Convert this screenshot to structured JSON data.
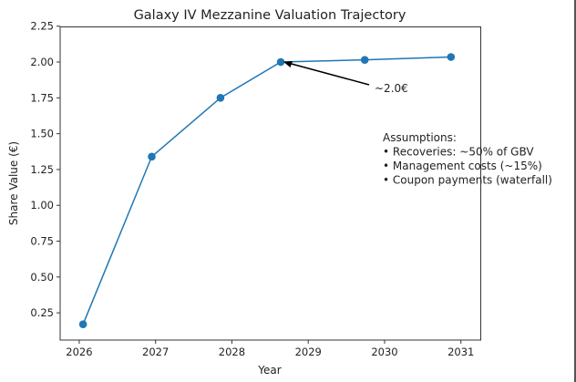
{
  "chart_data": {
    "type": "line",
    "title": "Galaxy IV Mezzanine Valuation Trajectory",
    "xlabel": "Year",
    "ylabel": "Share Value (€)",
    "x": [
      2026.05,
      2026.95,
      2027.85,
      2028.64,
      2029.74,
      2030.87
    ],
    "series": [
      {
        "values": [
          0.17,
          1.34,
          1.75,
          2.0,
          2.015,
          2.035
        ],
        "color": "#1f77b4",
        "marker": "circle"
      }
    ],
    "xlim": [
      2025.75,
      2031.26
    ],
    "ylim": [
      0.06,
      2.245
    ],
    "xticks": [
      "2026",
      "2027",
      "2028",
      "2029",
      "2030",
      "2031"
    ],
    "yticks": [
      "0.25",
      "0.50",
      "0.75",
      "1.00",
      "1.25",
      "1.50",
      "1.75",
      "2.00",
      "2.25"
    ],
    "grid": false,
    "annotation": {
      "text": "~2.0€",
      "target_index": 3
    },
    "assumptions": [
      "Assumptions:",
      "• Recoveries: ~50% of GBV",
      "• Management costs (~15%)",
      "• Coupon payments (waterfall)"
    ]
  }
}
